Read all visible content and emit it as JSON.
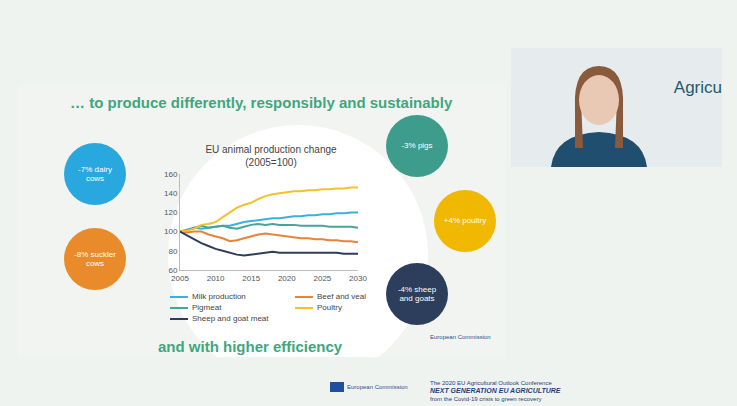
{
  "slide": {
    "title": "… to produce differently, responsibly and sustainably",
    "closing": "and with higher efficiency",
    "logo_text": "European Commission",
    "badges": [
      {
        "label": "-7% dairy cows",
        "color": "#29a8e0"
      },
      {
        "label": "-8% suckler cows",
        "color": "#e98b2a"
      },
      {
        "label": "-3% pigs",
        "color": "#3d9c8c"
      },
      {
        "label": "+4% poultry",
        "color": "#f0b800"
      },
      {
        "label": "-4% sheep and goats",
        "color": "#2c3e5c"
      }
    ]
  },
  "speaker_panel": {
    "text": "Agricu"
  },
  "footer": {
    "logo_text": "European Commission",
    "lines": [
      "The 2020 EU Agricultural Outlook Conference",
      "NEXT GENERATION EU AGRICULTURE",
      "from the Covid-19 crisis to green recovery"
    ]
  },
  "chart_data": {
    "type": "line",
    "title": "EU animal production change",
    "subtitle": "(2005=100)",
    "x": [
      2005,
      2006,
      2007,
      2008,
      2009,
      2010,
      2011,
      2012,
      2013,
      2014,
      2015,
      2016,
      2017,
      2018,
      2019,
      2020,
      2021,
      2022,
      2023,
      2024,
      2025,
      2026,
      2027,
      2028,
      2029,
      2030
    ],
    "series": [
      {
        "name": "Milk production",
        "color": "#3ab0e2",
        "values": [
          100,
          102,
          104,
          103,
          104,
          105,
          106,
          106,
          108,
          110,
          111,
          112,
          113,
          114,
          114,
          115,
          116,
          116,
          117,
          117,
          118,
          118,
          119,
          119,
          120,
          120
        ]
      },
      {
        "name": "Beef and veal",
        "color": "#e8833a",
        "values": [
          100,
          99,
          100,
          100,
          97,
          95,
          93,
          90,
          91,
          93,
          95,
          97,
          98,
          97,
          96,
          95,
          94,
          93,
          93,
          92,
          92,
          91,
          91,
          90,
          90,
          89
        ]
      },
      {
        "name": "Pigmeat",
        "color": "#4aa39a",
        "values": [
          100,
          101,
          104,
          106,
          104,
          105,
          106,
          104,
          103,
          105,
          107,
          108,
          107,
          108,
          107,
          107,
          107,
          106,
          106,
          106,
          106,
          105,
          105,
          105,
          105,
          104
        ]
      },
      {
        "name": "Poultry",
        "color": "#f2c12e",
        "values": [
          100,
          101,
          103,
          107,
          108,
          110,
          115,
          120,
          125,
          128,
          130,
          134,
          137,
          139,
          140,
          141,
          142,
          142,
          143,
          143,
          144,
          144,
          145,
          145,
          146,
          146
        ]
      },
      {
        "name": "Sheep and goat meat",
        "color": "#2c3e5c",
        "values": [
          100,
          96,
          92,
          88,
          85,
          82,
          80,
          78,
          76,
          75,
          76,
          77,
          78,
          79,
          78,
          78,
          78,
          78,
          78,
          78,
          78,
          78,
          78,
          77,
          77,
          77
        ]
      }
    ],
    "xlim": [
      2005,
      2030
    ],
    "xticks": [
      2005,
      2010,
      2015,
      2020,
      2025,
      2030
    ],
    "ylim": [
      60,
      160
    ],
    "yticks": [
      60,
      80,
      100,
      120,
      140,
      160
    ],
    "grid": false,
    "legend": "bottom"
  }
}
